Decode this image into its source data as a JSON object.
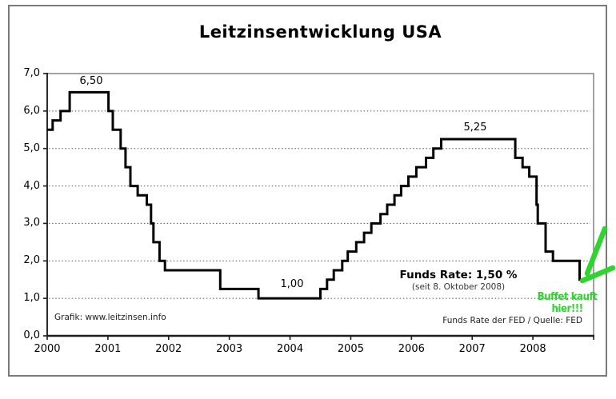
{
  "chart_data": {
    "type": "line",
    "subtype": "step",
    "title": "Leitzinsentwicklung USA",
    "xlabel": "",
    "ylabel": "",
    "grid": "horizontal dotted",
    "legend": "none",
    "x_axis": {
      "range": [
        2000,
        2009
      ],
      "tick_values": [
        2000,
        2001,
        2002,
        2003,
        2004,
        2005,
        2006,
        2007,
        2008
      ],
      "tick_labels": [
        "2000",
        "2001",
        "2002",
        "2003",
        "2004",
        "2005",
        "2006",
        "2007",
        "2008"
      ]
    },
    "y_axis": {
      "range": [
        0,
        7
      ],
      "grid_values": [
        1,
        2,
        3,
        4,
        5,
        6
      ],
      "ticks": [
        {
          "v": 7,
          "label": "7,0"
        },
        {
          "v": 6,
          "label": "6,0"
        },
        {
          "v": 5,
          "label": "5,0"
        },
        {
          "v": 4,
          "label": "4,0"
        },
        {
          "v": 3,
          "label": "3,0"
        },
        {
          "v": 2,
          "label": "2,0"
        },
        {
          "v": 1,
          "label": "1,0"
        },
        {
          "v": 0,
          "label": "0,0"
        }
      ]
    },
    "series": [
      {
        "name": "Funds Rate der FED",
        "color": "#000000",
        "x_end": 2008.83,
        "points": [
          [
            2000.0,
            5.5
          ],
          [
            2000.09,
            5.75
          ],
          [
            2000.22,
            6.0
          ],
          [
            2000.37,
            6.5
          ],
          [
            2001.01,
            6.0
          ],
          [
            2001.08,
            5.5
          ],
          [
            2001.21,
            5.0
          ],
          [
            2001.29,
            4.5
          ],
          [
            2001.37,
            4.0
          ],
          [
            2001.49,
            3.75
          ],
          [
            2001.64,
            3.5
          ],
          [
            2001.71,
            3.0
          ],
          [
            2001.75,
            2.5
          ],
          [
            2001.85,
            2.0
          ],
          [
            2001.94,
            1.75
          ],
          [
            2002.85,
            1.25
          ],
          [
            2003.48,
            1.0
          ],
          [
            2004.5,
            1.25
          ],
          [
            2004.61,
            1.5
          ],
          [
            2004.72,
            1.75
          ],
          [
            2004.86,
            2.0
          ],
          [
            2004.95,
            2.25
          ],
          [
            2005.09,
            2.5
          ],
          [
            2005.22,
            2.75
          ],
          [
            2005.34,
            3.0
          ],
          [
            2005.49,
            3.25
          ],
          [
            2005.6,
            3.5
          ],
          [
            2005.72,
            3.75
          ],
          [
            2005.83,
            4.0
          ],
          [
            2005.95,
            4.25
          ],
          [
            2006.08,
            4.5
          ],
          [
            2006.24,
            4.75
          ],
          [
            2006.36,
            5.0
          ],
          [
            2006.49,
            5.25
          ],
          [
            2007.71,
            4.75
          ],
          [
            2007.83,
            4.5
          ],
          [
            2007.94,
            4.25
          ],
          [
            2008.06,
            3.5
          ],
          [
            2008.08,
            3.0
          ],
          [
            2008.21,
            2.25
          ],
          [
            2008.33,
            2.0
          ],
          [
            2008.77,
            1.5
          ]
        ]
      }
    ],
    "annotations": {
      "peak": "6,50",
      "plateau": "5,25",
      "low": "1,00",
      "funds_rate": "Funds Rate: 1,50 %",
      "funds_rate_since": "(seit 8. Oktober 2008)",
      "credit": "Grafik: www.leitzinsen.info",
      "source": "Funds Rate der FED / Quelle: FED",
      "buffett": "Buffet kauft hier!!!",
      "buffett_color": "#2fd42f"
    }
  }
}
